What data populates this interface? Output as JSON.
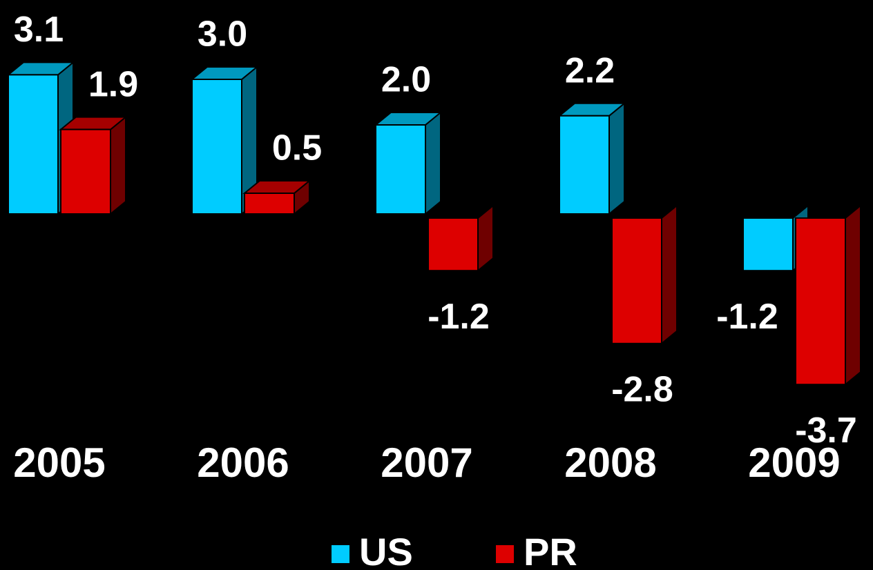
{
  "chart_data": {
    "type": "bar3d",
    "categories": [
      "2005",
      "2006",
      "2007",
      "2008",
      "2009"
    ],
    "series": [
      {
        "name": "US",
        "color": "#00ccff",
        "values": [
          3.1,
          3.0,
          2.0,
          2.2,
          -1.2
        ],
        "value_labels": [
          "3.1",
          "3.0",
          "2.0",
          "2.2",
          "-1.2"
        ]
      },
      {
        "name": "PR",
        "color": "#dd0000",
        "values": [
          1.9,
          0.5,
          -1.2,
          -2.8,
          -3.7
        ],
        "value_labels": [
          "1.9",
          "0.5",
          "-1.2",
          "-2.8",
          "-3.7"
        ]
      }
    ]
  }
}
